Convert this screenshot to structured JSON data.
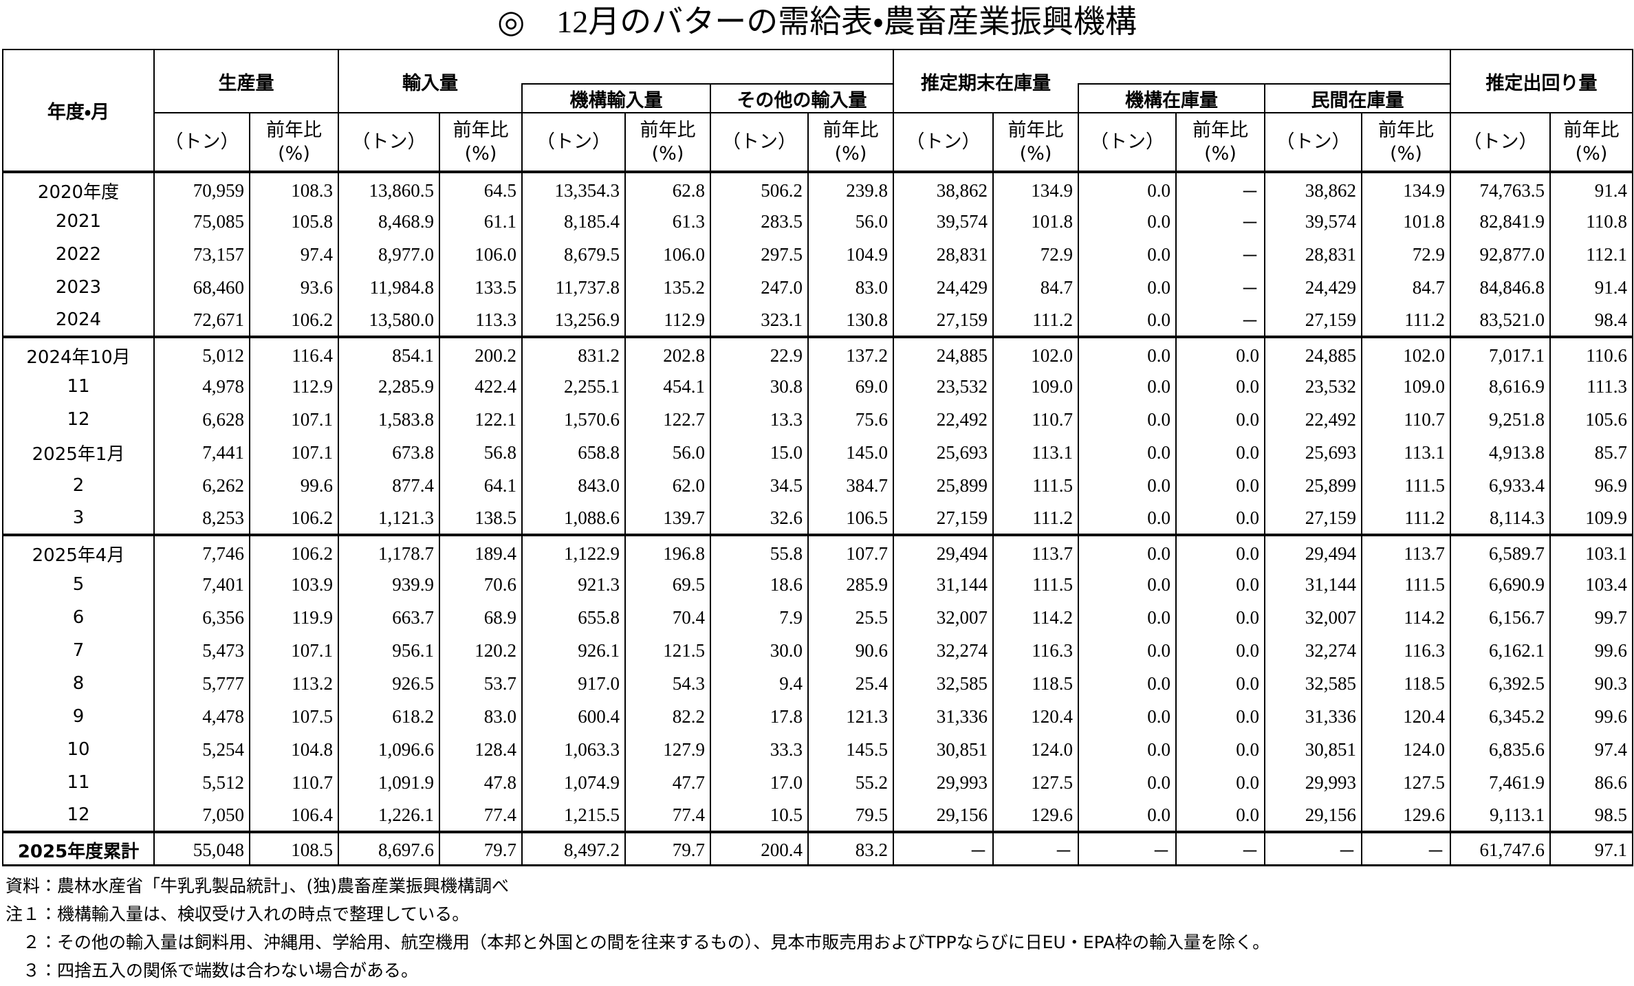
{
  "title": "◎　12月のバターの需給表・農畜産業振興機構",
  "table": {
    "corner": "年度・月",
    "groups": [
      "生産量",
      "輸入量",
      "機構輸入量",
      "その他の輸入量",
      "推定期末在庫量",
      "機構在庫量",
      "民間在庫量",
      "推定出回り量"
    ],
    "subheaders": [
      "（トン）",
      "前年比\n(%)",
      "（トン）",
      "前年比\n(%)",
      "（トン）",
      "前年比\n(%)",
      "（トン）",
      "前年比\n(%)",
      "（トン）",
      "前年比\n(%)",
      "（トン）",
      "前年比\n(%)",
      "（トン）",
      "前年比\n(%)",
      "（トン）",
      "前年比\n(%)"
    ],
    "sections": [
      [
        [
          "2020年度",
          "70,959",
          "108.3",
          "13,860.5",
          "64.5",
          "13,354.3",
          "62.8",
          "506.2",
          "239.8",
          "38,862",
          "134.9",
          "0.0",
          "－",
          "38,862",
          "134.9",
          "74,763.5",
          "91.4"
        ],
        [
          "2021",
          "75,085",
          "105.8",
          "8,468.9",
          "61.1",
          "8,185.4",
          "61.3",
          "283.5",
          "56.0",
          "39,574",
          "101.8",
          "0.0",
          "－",
          "39,574",
          "101.8",
          "82,841.9",
          "110.8"
        ],
        [
          "2022",
          "73,157",
          "97.4",
          "8,977.0",
          "106.0",
          "8,679.5",
          "106.0",
          "297.5",
          "104.9",
          "28,831",
          "72.9",
          "0.0",
          "－",
          "28,831",
          "72.9",
          "92,877.0",
          "112.1"
        ],
        [
          "2023",
          "68,460",
          "93.6",
          "11,984.8",
          "133.5",
          "11,737.8",
          "135.2",
          "247.0",
          "83.0",
          "24,429",
          "84.7",
          "0.0",
          "－",
          "24,429",
          "84.7",
          "84,846.8",
          "91.4"
        ],
        [
          "2024",
          "72,671",
          "106.2",
          "13,580.0",
          "113.3",
          "13,256.9",
          "112.9",
          "323.1",
          "130.8",
          "27,159",
          "111.2",
          "0.0",
          "－",
          "27,159",
          "111.2",
          "83,521.0",
          "98.4"
        ]
      ],
      [
        [
          "2024年10月",
          "5,012",
          "116.4",
          "854.1",
          "200.2",
          "831.2",
          "202.8",
          "22.9",
          "137.2",
          "24,885",
          "102.0",
          "0.0",
          "0.0",
          "24,885",
          "102.0",
          "7,017.1",
          "110.6"
        ],
        [
          "11",
          "4,978",
          "112.9",
          "2,285.9",
          "422.4",
          "2,255.1",
          "454.1",
          "30.8",
          "69.0",
          "23,532",
          "109.0",
          "0.0",
          "0.0",
          "23,532",
          "109.0",
          "8,616.9",
          "111.3"
        ],
        [
          "12",
          "6,628",
          "107.1",
          "1,583.8",
          "122.1",
          "1,570.6",
          "122.7",
          "13.3",
          "75.6",
          "22,492",
          "110.7",
          "0.0",
          "0.0",
          "22,492",
          "110.7",
          "9,251.8",
          "105.6"
        ],
        [
          "2025年1月",
          "7,441",
          "107.1",
          "673.8",
          "56.8",
          "658.8",
          "56.0",
          "15.0",
          "145.0",
          "25,693",
          "113.1",
          "0.0",
          "0.0",
          "25,693",
          "113.1",
          "4,913.8",
          "85.7"
        ],
        [
          "2",
          "6,262",
          "99.6",
          "877.4",
          "64.1",
          "843.0",
          "62.0",
          "34.5",
          "384.7",
          "25,899",
          "111.5",
          "0.0",
          "0.0",
          "25,899",
          "111.5",
          "6,933.4",
          "96.9"
        ],
        [
          "3",
          "8,253",
          "106.2",
          "1,121.3",
          "138.5",
          "1,088.6",
          "139.7",
          "32.6",
          "106.5",
          "27,159",
          "111.2",
          "0.0",
          "0.0",
          "27,159",
          "111.2",
          "8,114.3",
          "109.9"
        ]
      ],
      [
        [
          "2025年4月",
          "7,746",
          "106.2",
          "1,178.7",
          "189.4",
          "1,122.9",
          "196.8",
          "55.8",
          "107.7",
          "29,494",
          "113.7",
          "0.0",
          "0.0",
          "29,494",
          "113.7",
          "6,589.7",
          "103.1"
        ],
        [
          "5",
          "7,401",
          "103.9",
          "939.9",
          "70.6",
          "921.3",
          "69.5",
          "18.6",
          "285.9",
          "31,144",
          "111.5",
          "0.0",
          "0.0",
          "31,144",
          "111.5",
          "6,690.9",
          "103.4"
        ],
        [
          "6",
          "6,356",
          "119.9",
          "663.7",
          "68.9",
          "655.8",
          "70.4",
          "7.9",
          "25.5",
          "32,007",
          "114.2",
          "0.0",
          "0.0",
          "32,007",
          "114.2",
          "6,156.7",
          "99.7"
        ],
        [
          "7",
          "5,473",
          "107.1",
          "956.1",
          "120.2",
          "926.1",
          "121.5",
          "30.0",
          "90.6",
          "32,274",
          "116.3",
          "0.0",
          "0.0",
          "32,274",
          "116.3",
          "6,162.1",
          "99.6"
        ],
        [
          "8",
          "5,777",
          "113.2",
          "926.5",
          "53.7",
          "917.0",
          "54.3",
          "9.4",
          "25.4",
          "32,585",
          "118.5",
          "0.0",
          "0.0",
          "32,585",
          "118.5",
          "6,392.5",
          "90.3"
        ],
        [
          "9",
          "4,478",
          "107.5",
          "618.2",
          "83.0",
          "600.4",
          "82.2",
          "17.8",
          "121.3",
          "31,336",
          "120.4",
          "0.0",
          "0.0",
          "31,336",
          "120.4",
          "6,345.2",
          "99.6"
        ],
        [
          "10",
          "5,254",
          "104.8",
          "1,096.6",
          "128.4",
          "1,063.3",
          "127.9",
          "33.3",
          "145.5",
          "30,851",
          "124.0",
          "0.0",
          "0.0",
          "30,851",
          "124.0",
          "6,835.6",
          "97.4"
        ],
        [
          "11",
          "5,512",
          "110.7",
          "1,091.9",
          "47.8",
          "1,074.9",
          "47.7",
          "17.0",
          "55.2",
          "29,993",
          "127.5",
          "0.0",
          "0.0",
          "29,993",
          "127.5",
          "7,461.9",
          "86.6"
        ],
        [
          "12",
          "7,050",
          "106.4",
          "1,226.1",
          "77.4",
          "1,215.5",
          "77.4",
          "10.5",
          "79.5",
          "29,156",
          "129.6",
          "0.0",
          "0.0",
          "29,156",
          "129.6",
          "9,113.1",
          "98.5"
        ]
      ]
    ],
    "total": [
      "2025年度累計",
      "55,048",
      "108.5",
      "8,697.6",
      "79.7",
      "8,497.2",
      "79.7",
      "200.4",
      "83.2",
      "－",
      "－",
      "－",
      "－",
      "－",
      "－",
      "61,747.6",
      "97.1"
    ]
  },
  "notes": [
    "資料：農林水産省「牛乳乳製品統計」、(独)農畜産業振興機構調べ",
    "注１：機構輸入量は、検収受け入れの時点で整理している。",
    "　２：その他の輸入量は飼料用、沖縄用、学給用、航空機用（本邦と外国との間を往来するもの）、見本市販売用およびTPPならびに日EU・EPA枠の輸入量を除く。",
    "　３：四捨五入の関係で端数は合わない場合がある。"
  ]
}
